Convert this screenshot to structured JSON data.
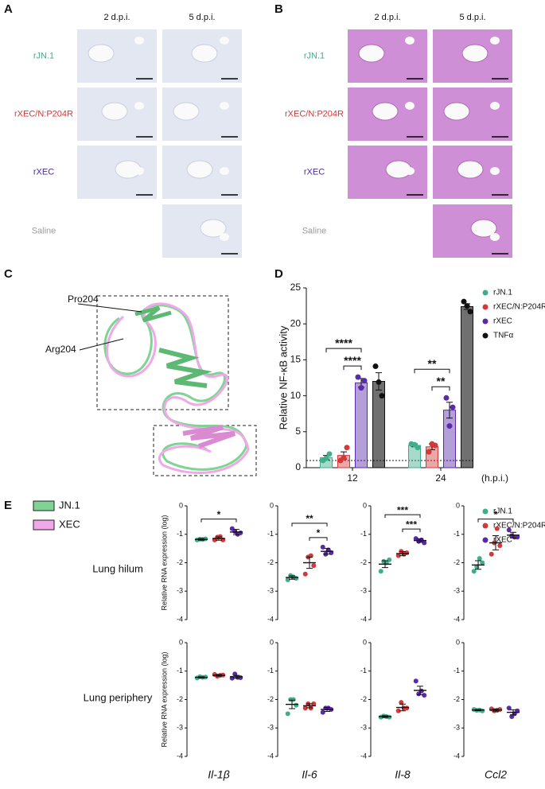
{
  "histology": [
    {
      "letter": "A",
      "columns": [
        "2 d.p.i.",
        "5 d.p.i."
      ],
      "rows": [
        "rJN.1",
        "rXEC/N:P204R",
        "rXEC",
        "Saline"
      ],
      "row_colors": [
        "#3fae8c",
        "#d2393a",
        "#4b2a9c",
        "#9a9a9a"
      ],
      "tissue_color": "#e3e7f1"
    },
    {
      "letter": "B",
      "columns": [
        "2 d.p.i.",
        "5 d.p.i."
      ],
      "rows": [
        "rJN.1",
        "rXEC/N:P204R",
        "rXEC",
        "Saline"
      ],
      "row_colors": [
        "#3fae8c",
        "#d2393a",
        "#4b2a9c",
        "#9a9a9a"
      ],
      "tissue_color": "#cf8fd6"
    }
  ],
  "structure": {
    "letter": "C",
    "labels": [
      "Pro204",
      "Arg204"
    ],
    "legend": [
      {
        "name": "JN.1",
        "color": "#7fd494"
      },
      {
        "name": "XEC",
        "color": "#f0a8e8"
      }
    ]
  },
  "panel_e": {
    "letter": "E",
    "rows": [
      "Lung hilum",
      "Lung periphery"
    ],
    "genes": [
      "Il-1β",
      "Il-6",
      "Il-8",
      "Ccl2"
    ],
    "ylabel": "Relative RNA expression (log)",
    "groups": [
      {
        "name": "rJN.1",
        "color": "#3fae8c"
      },
      {
        "name": "rXEC/N:P204R",
        "color": "#d2393a"
      },
      {
        "name": "rXEC",
        "color": "#5b2aa8"
      }
    ]
  },
  "chart_data": [
    {
      "type": "bar",
      "letter": "D",
      "ylabel": "Relative NF-κB activity",
      "x_label": "(h.p.i.)",
      "categories": [
        "12",
        "24"
      ],
      "ylim": [
        0,
        25
      ],
      "yticks": [
        0,
        5,
        10,
        15,
        20,
        25
      ],
      "reference_line": 1,
      "series": [
        {
          "name": "rJN.1",
          "color": "#3fae8c",
          "values": [
            1.4,
            3.1
          ],
          "errors": [
            0.3,
            0.2
          ],
          "points": [
            [
              1.0,
              1.3,
              1.9
            ],
            [
              3.3,
              3.2,
              2.8
            ]
          ]
        },
        {
          "name": "rXEC/N:P204R",
          "color": "#d2393a",
          "values": [
            1.7,
            2.9
          ],
          "errors": [
            0.5,
            0.4
          ],
          "points": [
            [
              1.0,
              1.4,
              2.8
            ],
            [
              2.2,
              3.3,
              3.1
            ]
          ]
        },
        {
          "name": "rXEC",
          "color": "#5b2aa8",
          "values": [
            11.8,
            8.0
          ],
          "errors": [
            0.6,
            1.1
          ],
          "points": [
            [
              12.6,
              11.1,
              12.1
            ],
            [
              9.7,
              5.8,
              8.4
            ]
          ]
        },
        {
          "name": "TNFα",
          "color": "#111111",
          "values": [
            12.0,
            22.4
          ],
          "errors": [
            1.2,
            0.4
          ],
          "points": [
            [
              14.1,
              11.9,
              10.0
            ],
            [
              23.1,
              22.5,
              21.7
            ]
          ]
        }
      ],
      "significance": [
        {
          "category": 0,
          "groups": [
            1,
            2
          ],
          "label": "****"
        },
        {
          "category": 0,
          "groups": [
            0,
            2
          ],
          "label": "****"
        },
        {
          "category": 1,
          "groups": [
            1,
            2
          ],
          "label": "**"
        },
        {
          "category": 1,
          "groups": [
            0,
            2
          ],
          "label": "**"
        }
      ]
    },
    {
      "type": "dot",
      "ylim": [
        -4,
        0
      ],
      "yticks": [
        0,
        -1,
        -2,
        -3,
        -4
      ],
      "values": [
        -1.18,
        -1.15,
        -0.92
      ],
      "errors": [
        0.03,
        0.06,
        0.09
      ],
      "points": [
        [
          -1.2,
          -1.17,
          -1.18,
          -1.16
        ],
        [
          -1.2,
          -1.1,
          -1.08,
          -1.2
        ],
        [
          -0.8,
          -0.9,
          -1.0,
          -0.95
        ]
      ],
      "significance": [
        {
          "groups": [
            0,
            2
          ],
          "label": "*"
        }
      ]
    },
    {
      "type": "dot",
      "ylim": [
        -4,
        0
      ],
      "yticks": [
        0,
        -1,
        -2,
        -3,
        -4
      ],
      "values": [
        -2.52,
        -2.0,
        -1.6
      ],
      "errors": [
        0.06,
        0.2,
        0.1
      ],
      "points": [
        [
          -2.6,
          -2.45,
          -2.5,
          -2.55
        ],
        [
          -2.4,
          -1.8,
          -1.75,
          -2.1
        ],
        [
          -1.45,
          -1.7,
          -1.55,
          -1.65
        ]
      ],
      "significance": [
        {
          "groups": [
            1,
            2
          ],
          "label": "*"
        },
        {
          "groups": [
            0,
            2
          ],
          "label": "**"
        }
      ]
    },
    {
      "type": "dot",
      "ylim": [
        -4,
        0
      ],
      "yticks": [
        0,
        -1,
        -2,
        -3,
        -4
      ],
      "values": [
        -2.05,
        -1.68,
        -1.22
      ],
      "errors": [
        0.12,
        0.07,
        0.06
      ],
      "points": [
        [
          -2.3,
          -1.95,
          -2.0,
          -1.9
        ],
        [
          -1.75,
          -1.6,
          -1.7,
          -1.65
        ],
        [
          -1.15,
          -1.25,
          -1.2,
          -1.3
        ]
      ],
      "significance": [
        {
          "groups": [
            1,
            2
          ],
          "label": "***"
        },
        {
          "groups": [
            0,
            2
          ],
          "label": "***"
        }
      ]
    },
    {
      "type": "dot",
      "ylim": [
        -4,
        0
      ],
      "yticks": [
        0,
        -1,
        -2,
        -3,
        -4
      ],
      "values": [
        -2.08,
        -1.3,
        -1.03
      ],
      "errors": [
        0.15,
        0.25,
        0.1
      ],
      "points": [
        [
          -2.3,
          -2.15,
          -1.85,
          -2.0
        ],
        [
          -1.7,
          -1.3,
          -0.8,
          -1.4
        ],
        [
          -0.85,
          -1.05,
          -1.1,
          -1.1
        ]
      ],
      "significance": [
        {
          "groups": [
            0,
            2
          ],
          "label": "*"
        }
      ]
    },
    {
      "type": "dot",
      "ylim": [
        -4,
        0
      ],
      "yticks": [
        0,
        -1,
        -2,
        -3,
        -4
      ],
      "values": [
        -1.22,
        -1.15,
        -1.2
      ],
      "errors": [
        0.02,
        0.03,
        0.05
      ],
      "points": [
        [
          -1.24,
          -1.2,
          -1.22,
          -1.21
        ],
        [
          -1.12,
          -1.18,
          -1.15,
          -1.14
        ],
        [
          -1.25,
          -1.1,
          -1.22,
          -1.23
        ]
      ],
      "significance": []
    },
    {
      "type": "dot",
      "ylim": [
        -4,
        0
      ],
      "yticks": [
        0,
        -1,
        -2,
        -3,
        -4
      ],
      "values": [
        -2.17,
        -2.22,
        -2.35
      ],
      "errors": [
        0.15,
        0.07,
        0.07
      ],
      "points": [
        [
          -2.5,
          -2.0,
          -2.0,
          -2.2
        ],
        [
          -2.3,
          -2.15,
          -2.3,
          -2.15
        ],
        [
          -2.45,
          -2.3,
          -2.3,
          -2.35
        ]
      ],
      "significance": []
    },
    {
      "type": "dot",
      "ylim": [
        -4,
        0
      ],
      "yticks": [
        0,
        -1,
        -2,
        -3,
        -4
      ],
      "values": [
        -2.6,
        -2.28,
        -1.68
      ],
      "errors": [
        0.03,
        0.12,
        0.15
      ],
      "points": [
        [
          -2.62,
          -2.58,
          -2.6,
          -2.62
        ],
        [
          -2.4,
          -2.1,
          -2.3,
          -2.3
        ],
        [
          -1.35,
          -1.8,
          -1.7,
          -1.85
        ]
      ],
      "significance": []
    },
    {
      "type": "dot",
      "ylim": [
        -4,
        0
      ],
      "yticks": [
        0,
        -1,
        -2,
        -3,
        -4
      ],
      "values": [
        -2.37,
        -2.37,
        -2.45
      ],
      "errors": [
        0.02,
        0.04,
        0.09
      ],
      "points": [
        [
          -2.35,
          -2.38,
          -2.37,
          -2.4
        ],
        [
          -2.33,
          -2.4,
          -2.38,
          -2.35
        ],
        [
          -2.3,
          -2.6,
          -2.5,
          -2.4
        ]
      ],
      "significance": []
    }
  ]
}
